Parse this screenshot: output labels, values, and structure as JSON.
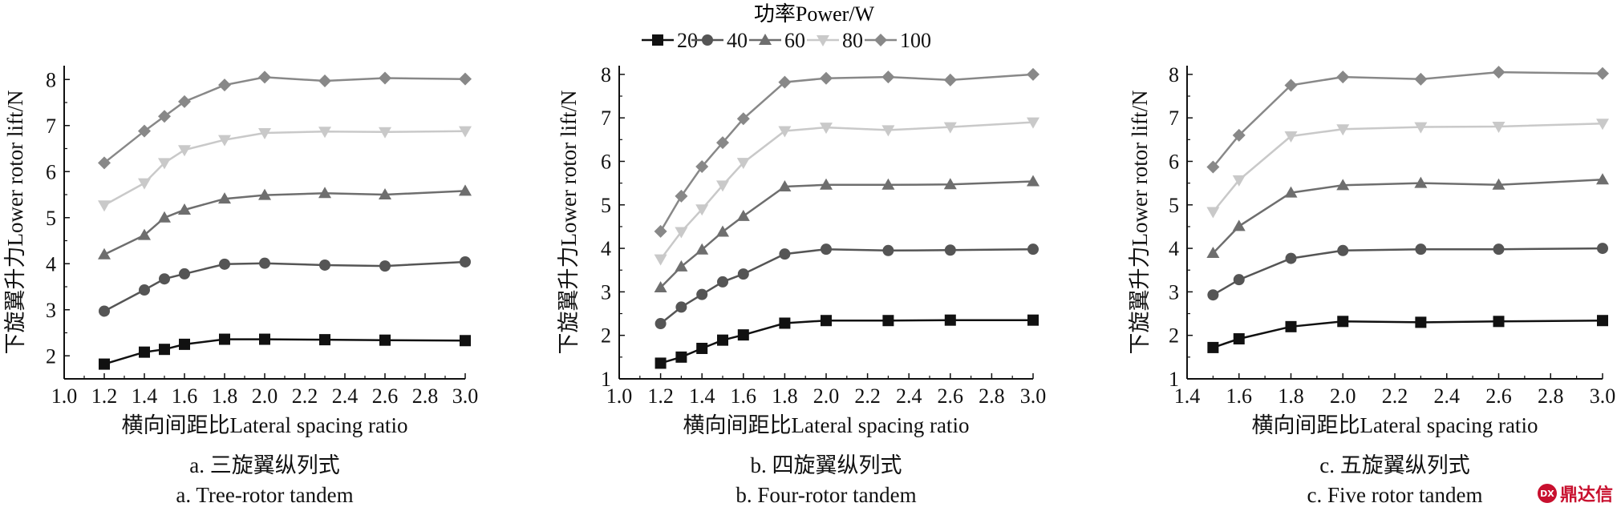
{
  "legend": {
    "title": "功率Power/W",
    "entries": [
      {
        "label": "20",
        "marker": "square",
        "color": "#111111"
      },
      {
        "label": "40",
        "marker": "circle",
        "color": "#555555"
      },
      {
        "label": "60",
        "marker": "triangle",
        "color": "#6e6e6e"
      },
      {
        "label": "80",
        "marker": "triangle-down",
        "color": "#c9c9c9"
      },
      {
        "label": "100",
        "marker": "diamond",
        "color": "#888888"
      }
    ]
  },
  "watermark": {
    "text": "鼎达信",
    "logo_text": "DX"
  },
  "chart_data": [
    {
      "type": "line",
      "caption_cn": "a. 三旋翼纵列式",
      "caption_en": "a. Tree-rotor tandem",
      "xlabel": "横向间距比Lateral spacing ratio",
      "ylabel": "下旋翼升力Lower rotor lift/N",
      "xlim": [
        1.0,
        3.0
      ],
      "ylim": [
        1.5,
        8.3
      ],
      "xticks": [
        "1.0",
        "1.2",
        "1.4",
        "1.6",
        "1.8",
        "2.0",
        "2.2",
        "2.4",
        "2.6",
        "2.8",
        "3.0"
      ],
      "yticks": [
        "2",
        "3",
        "4",
        "5",
        "6",
        "7",
        "8"
      ],
      "grid": false,
      "series": [
        {
          "name": "20",
          "x": [
            1.2,
            1.4,
            1.5,
            1.6,
            1.8,
            2.0,
            2.3,
            2.6,
            3.0
          ],
          "values": [
            1.82,
            2.08,
            2.14,
            2.25,
            2.36,
            2.36,
            2.35,
            2.34,
            2.33
          ]
        },
        {
          "name": "40",
          "x": [
            1.2,
            1.4,
            1.5,
            1.6,
            1.8,
            2.0,
            2.3,
            2.6,
            3.0
          ],
          "values": [
            2.97,
            3.43,
            3.67,
            3.78,
            3.99,
            4.01,
            3.97,
            3.95,
            4.04
          ]
        },
        {
          "name": "60",
          "x": [
            1.2,
            1.4,
            1.5,
            1.6,
            1.8,
            2.0,
            2.3,
            2.6,
            3.0
          ],
          "values": [
            4.2,
            4.62,
            5.0,
            5.17,
            5.41,
            5.49,
            5.53,
            5.5,
            5.58
          ]
        },
        {
          "name": "80",
          "x": [
            1.2,
            1.4,
            1.5,
            1.6,
            1.8,
            2.0,
            2.3,
            2.6,
            3.0
          ],
          "values": [
            5.27,
            5.75,
            6.19,
            6.47,
            6.69,
            6.84,
            6.87,
            6.86,
            6.88
          ]
        },
        {
          "name": "100",
          "x": [
            1.2,
            1.4,
            1.5,
            1.6,
            1.8,
            2.0,
            2.3,
            2.6,
            3.0
          ],
          "values": [
            6.19,
            6.88,
            7.2,
            7.52,
            7.88,
            8.05,
            7.97,
            8.03,
            8.01
          ]
        }
      ]
    },
    {
      "type": "line",
      "caption_cn": "b. 四旋翼纵列式",
      "caption_en": "b. Four-rotor tandem",
      "xlabel": "横向间距比Lateral spacing ratio",
      "ylabel": "下旋翼升力Lower rotor lift/N",
      "xlim": [
        1.0,
        3.0
      ],
      "ylim": [
        1.0,
        8.2
      ],
      "xticks": [
        "1.0",
        "1.2",
        "1.4",
        "1.6",
        "1.8",
        "2.0",
        "2.2",
        "2.4",
        "2.6",
        "2.8",
        "3.0"
      ],
      "yticks": [
        "1",
        "2",
        "3",
        "4",
        "5",
        "6",
        "7",
        "8"
      ],
      "grid": false,
      "series": [
        {
          "name": "20",
          "x": [
            1.2,
            1.3,
            1.4,
            1.5,
            1.6,
            1.8,
            2.0,
            2.3,
            2.6,
            3.0
          ],
          "values": [
            1.36,
            1.5,
            1.7,
            1.89,
            2.01,
            2.28,
            2.34,
            2.34,
            2.35,
            2.35
          ]
        },
        {
          "name": "40",
          "x": [
            1.2,
            1.3,
            1.4,
            1.5,
            1.6,
            1.8,
            2.0,
            2.3,
            2.6,
            3.0
          ],
          "values": [
            2.27,
            2.65,
            2.94,
            3.23,
            3.41,
            3.87,
            3.98,
            3.95,
            3.96,
            3.98
          ]
        },
        {
          "name": "60",
          "x": [
            1.2,
            1.3,
            1.4,
            1.5,
            1.6,
            1.8,
            2.0,
            2.3,
            2.6,
            3.0
          ],
          "values": [
            3.1,
            3.58,
            3.97,
            4.38,
            4.74,
            5.42,
            5.46,
            5.46,
            5.47,
            5.54
          ]
        },
        {
          "name": "80",
          "x": [
            1.2,
            1.3,
            1.4,
            1.5,
            1.6,
            1.8,
            2.0,
            2.3,
            2.6,
            3.0
          ],
          "values": [
            3.75,
            4.38,
            4.9,
            5.45,
            5.97,
            6.7,
            6.78,
            6.72,
            6.79,
            6.9
          ]
        },
        {
          "name": "100",
          "x": [
            1.2,
            1.3,
            1.4,
            1.5,
            1.6,
            1.8,
            2.0,
            2.3,
            2.6,
            3.0
          ],
          "values": [
            4.39,
            5.2,
            5.88,
            6.43,
            6.98,
            7.82,
            7.91,
            7.94,
            7.87,
            8.0
          ]
        }
      ]
    },
    {
      "type": "line",
      "caption_cn": "c. 五旋翼纵列式",
      "caption_en": "c. Five rotor tandem",
      "xlabel": "横向间距比Lateral spacing ratio",
      "ylabel": "下旋翼升力Lower rotor lift/N",
      "xlim": [
        1.4,
        3.0
      ],
      "ylim": [
        1.0,
        8.2
      ],
      "xticks": [
        "1.4",
        "1.6",
        "1.8",
        "2.0",
        "2.2",
        "2.4",
        "2.6",
        "2.8",
        "3.0"
      ],
      "yticks": [
        "1",
        "2",
        "3",
        "4",
        "5",
        "6",
        "7",
        "8"
      ],
      "grid": false,
      "series": [
        {
          "name": "20",
          "x": [
            1.5,
            1.6,
            1.8,
            2.0,
            2.3,
            2.6,
            3.0
          ],
          "values": [
            1.72,
            1.92,
            2.2,
            2.32,
            2.3,
            2.32,
            2.34
          ]
        },
        {
          "name": "40",
          "x": [
            1.5,
            1.6,
            1.8,
            2.0,
            2.3,
            2.6,
            3.0
          ],
          "values": [
            2.93,
            3.28,
            3.77,
            3.95,
            3.98,
            3.98,
            4.0
          ]
        },
        {
          "name": "60",
          "x": [
            1.5,
            1.6,
            1.8,
            2.0,
            2.3,
            2.6,
            3.0
          ],
          "values": [
            3.89,
            4.51,
            5.28,
            5.45,
            5.5,
            5.46,
            5.58
          ]
        },
        {
          "name": "80",
          "x": [
            1.5,
            1.6,
            1.8,
            2.0,
            2.3,
            2.6,
            3.0
          ],
          "values": [
            4.84,
            5.57,
            6.58,
            6.74,
            6.79,
            6.8,
            6.87
          ]
        },
        {
          "name": "100",
          "x": [
            1.5,
            1.6,
            1.8,
            2.0,
            2.3,
            2.6,
            3.0
          ],
          "values": [
            5.87,
            6.6,
            7.75,
            7.94,
            7.89,
            8.05,
            8.02
          ]
        }
      ]
    }
  ]
}
